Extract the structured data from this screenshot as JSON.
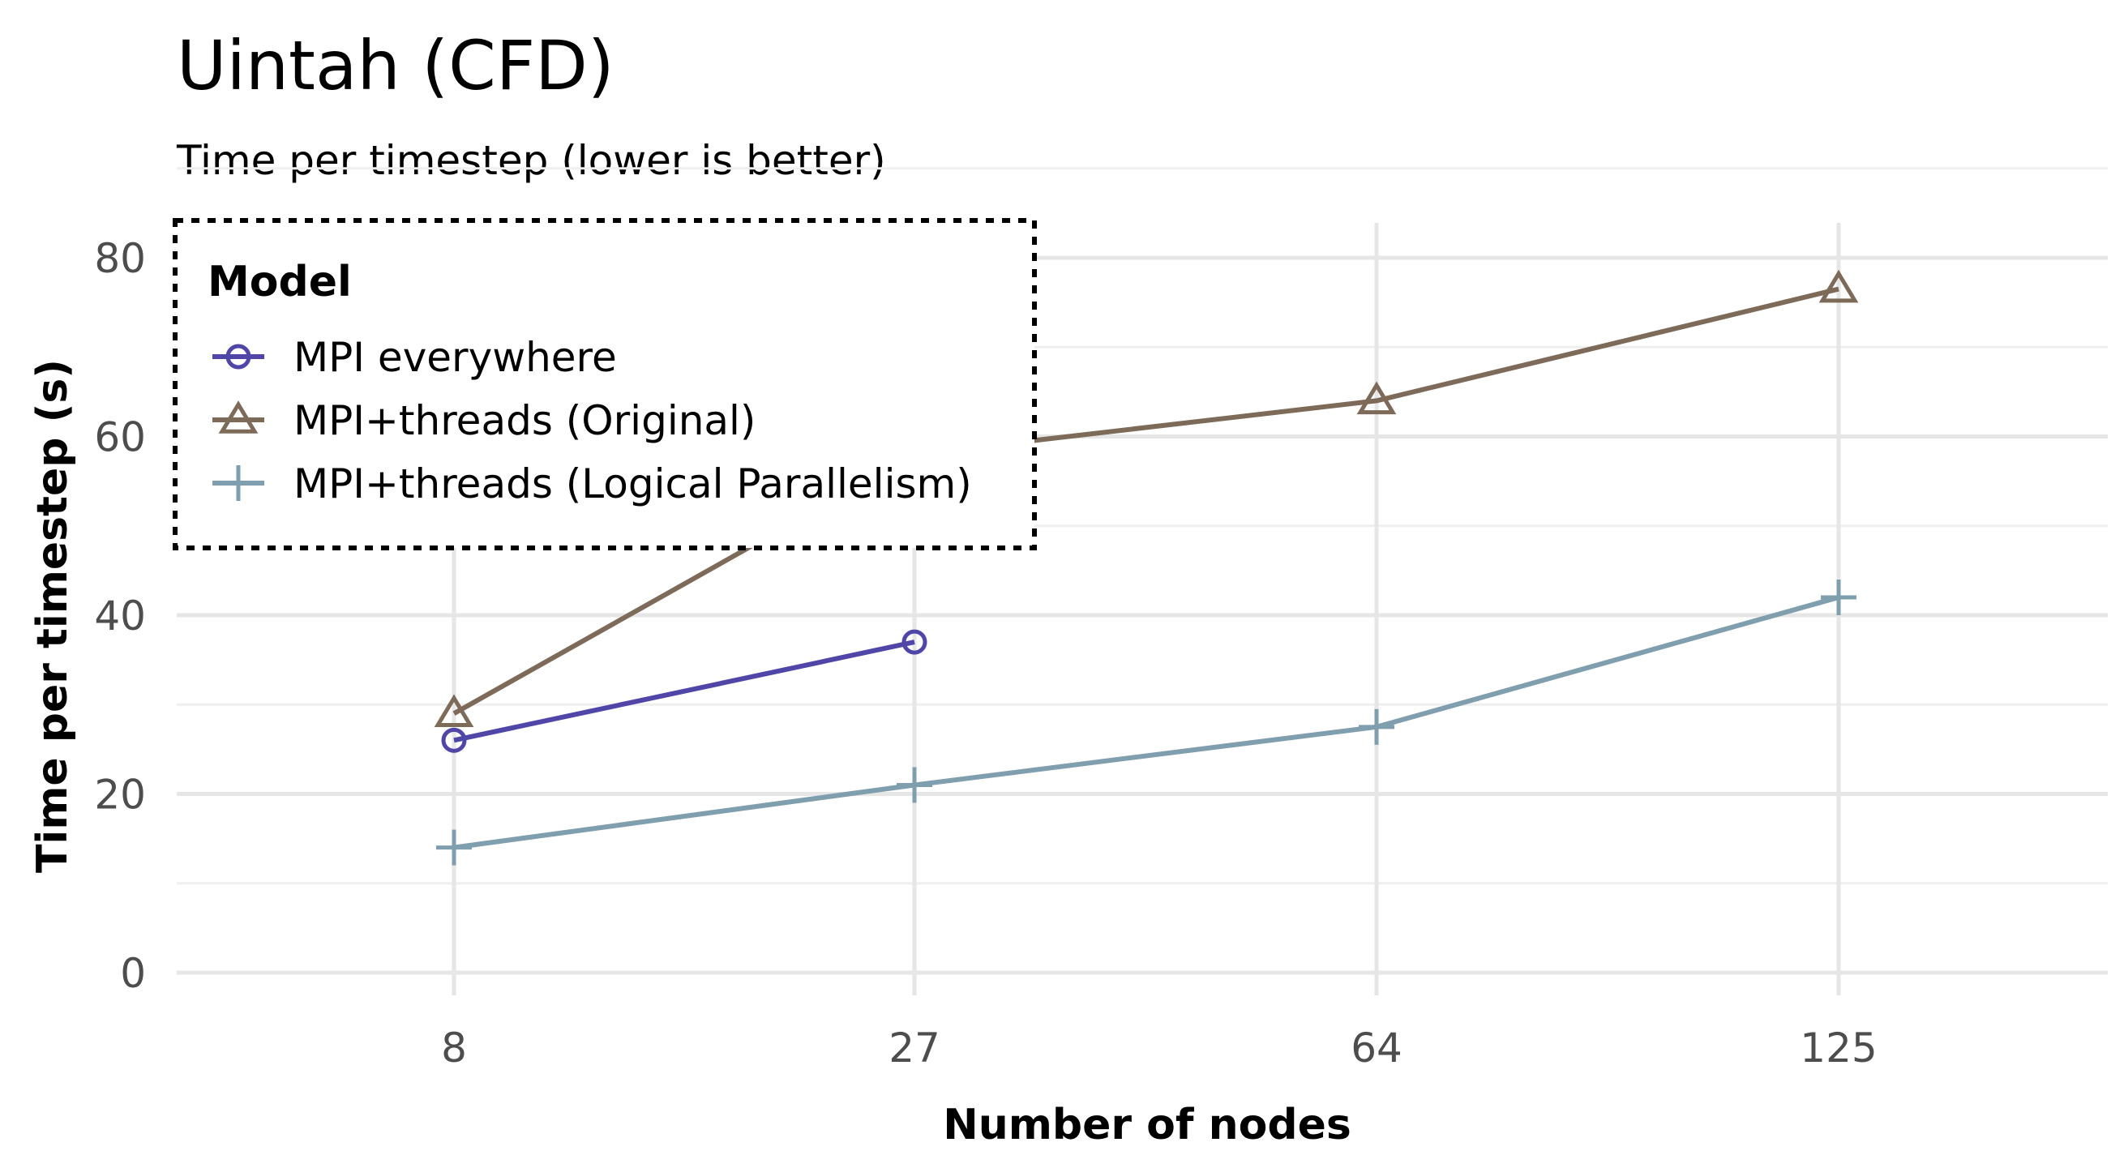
{
  "chart_data": {
    "type": "line",
    "title": "Uintah (CFD)",
    "subtitle": "Time per timestep (lower is better)",
    "xlabel": "Number of nodes",
    "ylabel": "Time per timestep (s)",
    "x": [
      8,
      27,
      64,
      125
    ],
    "xticks": [
      "8",
      "27",
      "64",
      "125"
    ],
    "yticks": [
      0,
      20,
      40,
      60,
      80
    ],
    "ylim": [
      0,
      80
    ],
    "grid": true,
    "legend": {
      "title": "Model",
      "placement": "top-left",
      "border": "dotted"
    },
    "series": [
      {
        "name": "MPI everywhere",
        "color": "#5046a8",
        "marker": "circle",
        "values": [
          26,
          37,
          null,
          null
        ]
      },
      {
        "name": "MPI+threads (Original)",
        "color": "#7e6a58",
        "marker": "triangle",
        "values": [
          29,
          58,
          64,
          76.5
        ]
      },
      {
        "name": "MPI+threads (Logical Parallelism)",
        "color": "#7f9eae",
        "marker": "plus",
        "values": [
          14,
          21,
          27.5,
          42
        ]
      }
    ]
  }
}
